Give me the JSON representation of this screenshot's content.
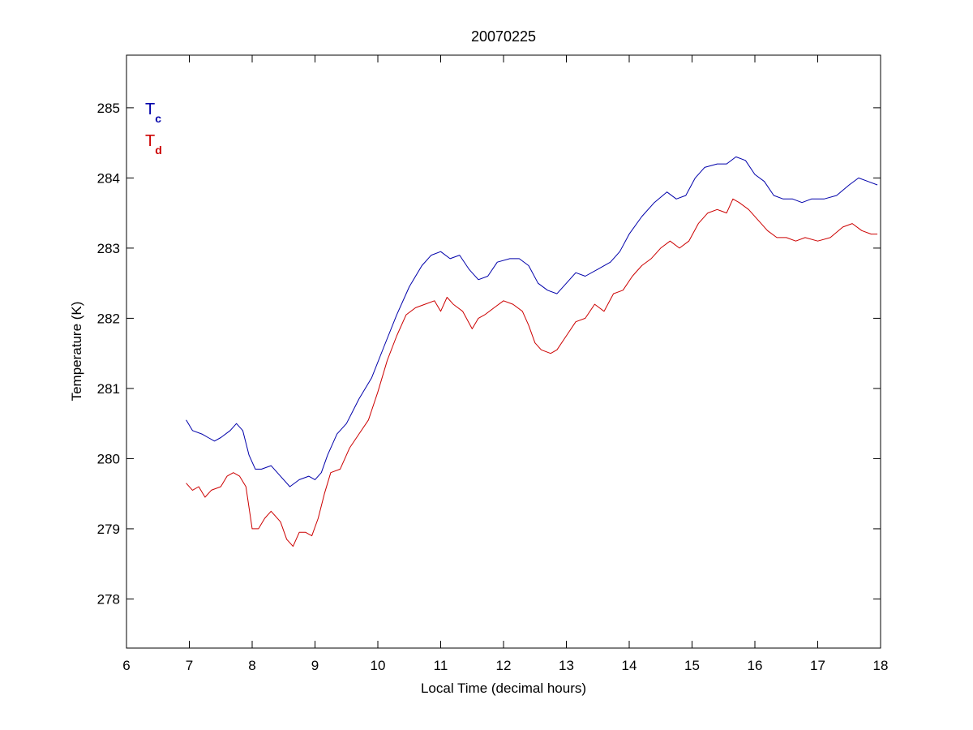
{
  "chart_data": {
    "type": "line",
    "title": "20070225",
    "xlabel": "Local Time (decimal hours)",
    "ylabel": "Temperature (K)",
    "xlim": [
      6,
      18
    ],
    "ylim": [
      277.3,
      285.75
    ],
    "xticks": [
      6,
      7,
      8,
      9,
      10,
      11,
      12,
      13,
      14,
      15,
      16,
      17,
      18
    ],
    "yticks": [
      278,
      279,
      280,
      281,
      282,
      283,
      284,
      285
    ],
    "grid": false,
    "legend_position": "top-left",
    "series": [
      {
        "name": "Tc",
        "name_main": "T",
        "name_sub": "c",
        "color": "#0000aa",
        "x": [
          6.95,
          7.05,
          7.2,
          7.3,
          7.4,
          7.5,
          7.65,
          7.75,
          7.85,
          7.95,
          8.05,
          8.15,
          8.3,
          8.45,
          8.6,
          8.75,
          8.9,
          9.0,
          9.1,
          9.2,
          9.35,
          9.5,
          9.7,
          9.9,
          10.1,
          10.3,
          10.5,
          10.7,
          10.85,
          11.0,
          11.15,
          11.3,
          11.45,
          11.6,
          11.75,
          11.9,
          12.1,
          12.25,
          12.4,
          12.55,
          12.7,
          12.85,
          13.0,
          13.15,
          13.3,
          13.5,
          13.7,
          13.85,
          14.0,
          14.2,
          14.4,
          14.6,
          14.75,
          14.9,
          15.05,
          15.2,
          15.4,
          15.55,
          15.7,
          15.85,
          16.0,
          16.15,
          16.3,
          16.45,
          16.6,
          16.75,
          16.9,
          17.1,
          17.3,
          17.5,
          17.65,
          17.8,
          17.95
        ],
        "values": [
          280.55,
          280.4,
          280.35,
          280.3,
          280.25,
          280.3,
          280.4,
          280.5,
          280.4,
          280.05,
          279.85,
          279.85,
          279.9,
          279.75,
          279.6,
          279.7,
          279.75,
          279.7,
          279.8,
          280.05,
          280.35,
          280.5,
          280.85,
          281.15,
          281.6,
          282.05,
          282.45,
          282.75,
          282.9,
          282.95,
          282.85,
          282.9,
          282.7,
          282.55,
          282.6,
          282.8,
          282.85,
          282.85,
          282.75,
          282.5,
          282.4,
          282.35,
          282.5,
          282.65,
          282.6,
          282.7,
          282.8,
          282.95,
          283.2,
          283.45,
          283.65,
          283.8,
          283.7,
          283.75,
          284.0,
          284.15,
          284.2,
          284.2,
          284.3,
          284.25,
          284.05,
          283.95,
          283.75,
          283.7,
          283.7,
          283.65,
          283.7,
          283.7,
          283.75,
          283.9,
          284.0,
          283.95,
          283.9
        ]
      },
      {
        "name": "Td",
        "name_main": "T",
        "name_sub": "d",
        "color": "#cc0000",
        "x": [
          6.95,
          7.05,
          7.15,
          7.25,
          7.35,
          7.5,
          7.6,
          7.7,
          7.8,
          7.9,
          8.0,
          8.1,
          8.2,
          8.3,
          8.45,
          8.55,
          8.65,
          8.75,
          8.85,
          8.95,
          9.05,
          9.15,
          9.25,
          9.4,
          9.55,
          9.7,
          9.85,
          10.0,
          10.15,
          10.3,
          10.45,
          10.6,
          10.75,
          10.9,
          11.0,
          11.1,
          11.2,
          11.35,
          11.5,
          11.6,
          11.7,
          11.85,
          12.0,
          12.15,
          12.3,
          12.4,
          12.5,
          12.6,
          12.75,
          12.85,
          13.0,
          13.15,
          13.3,
          13.45,
          13.6,
          13.75,
          13.9,
          14.05,
          14.2,
          14.35,
          14.5,
          14.65,
          14.8,
          14.95,
          15.1,
          15.25,
          15.4,
          15.55,
          15.65,
          15.75,
          15.9,
          16.05,
          16.2,
          16.35,
          16.5,
          16.65,
          16.8,
          17.0,
          17.2,
          17.4,
          17.55,
          17.7,
          17.85,
          17.95
        ],
        "values": [
          279.65,
          279.55,
          279.6,
          279.45,
          279.55,
          279.6,
          279.75,
          279.8,
          279.75,
          279.6,
          279.0,
          279.0,
          279.15,
          279.25,
          279.1,
          278.85,
          278.75,
          278.95,
          278.95,
          278.9,
          279.15,
          279.5,
          279.8,
          279.85,
          280.15,
          280.35,
          280.55,
          280.95,
          281.4,
          281.75,
          282.05,
          282.15,
          282.2,
          282.25,
          282.1,
          282.3,
          282.2,
          282.1,
          281.85,
          282.0,
          282.05,
          282.15,
          282.25,
          282.2,
          282.1,
          281.9,
          281.65,
          281.55,
          281.5,
          281.55,
          281.75,
          281.95,
          282.0,
          282.2,
          282.1,
          282.35,
          282.4,
          282.6,
          282.75,
          282.85,
          283.0,
          283.1,
          283.0,
          283.1,
          283.35,
          283.5,
          283.55,
          283.5,
          283.7,
          283.65,
          283.55,
          283.4,
          283.25,
          283.15,
          283.15,
          283.1,
          283.15,
          283.1,
          283.15,
          283.3,
          283.35,
          283.25,
          283.2,
          283.2
        ]
      }
    ]
  }
}
